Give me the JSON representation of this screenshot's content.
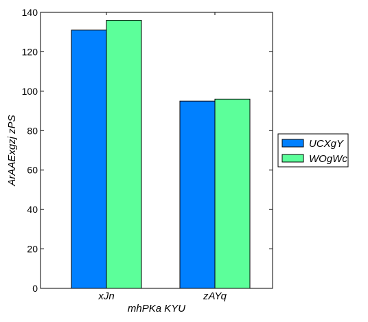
{
  "chart_data": {
    "type": "bar",
    "categories": [
      "xJn",
      "zAYq"
    ],
    "series": [
      {
        "name": "UCXgY",
        "values": [
          131,
          95
        ],
        "color": "#0080ff"
      },
      {
        "name": "WOgWc",
        "values": [
          136,
          96
        ],
        "color": "#5cff9a"
      }
    ],
    "xlabel": "mhPKa KYU",
    "ylabel": "ArAAExgzj zPS",
    "ylim": [
      0,
      140
    ],
    "yticks": [
      0,
      20,
      40,
      60,
      80,
      100,
      120,
      140
    ],
    "grid": false,
    "legend_position": "right"
  }
}
